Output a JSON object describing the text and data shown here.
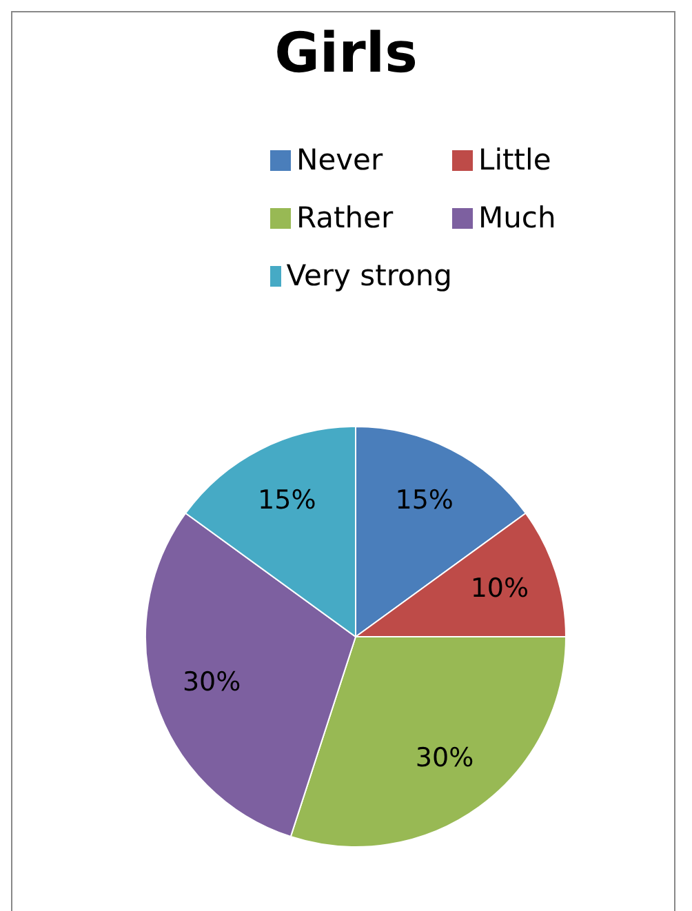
{
  "chart_data": {
    "type": "pie",
    "title": "Girls",
    "categories": [
      "Never",
      "Little",
      "Rather",
      "Much",
      "Very strong"
    ],
    "values": [
      15,
      10,
      30,
      30,
      15
    ],
    "value_labels": [
      "15%",
      "10%",
      "30%",
      "30%",
      "15%"
    ],
    "colors": [
      "#4a7ebb",
      "#be4b48",
      "#98b954",
      "#7d60a0",
      "#46aac5"
    ],
    "legend": "top"
  }
}
